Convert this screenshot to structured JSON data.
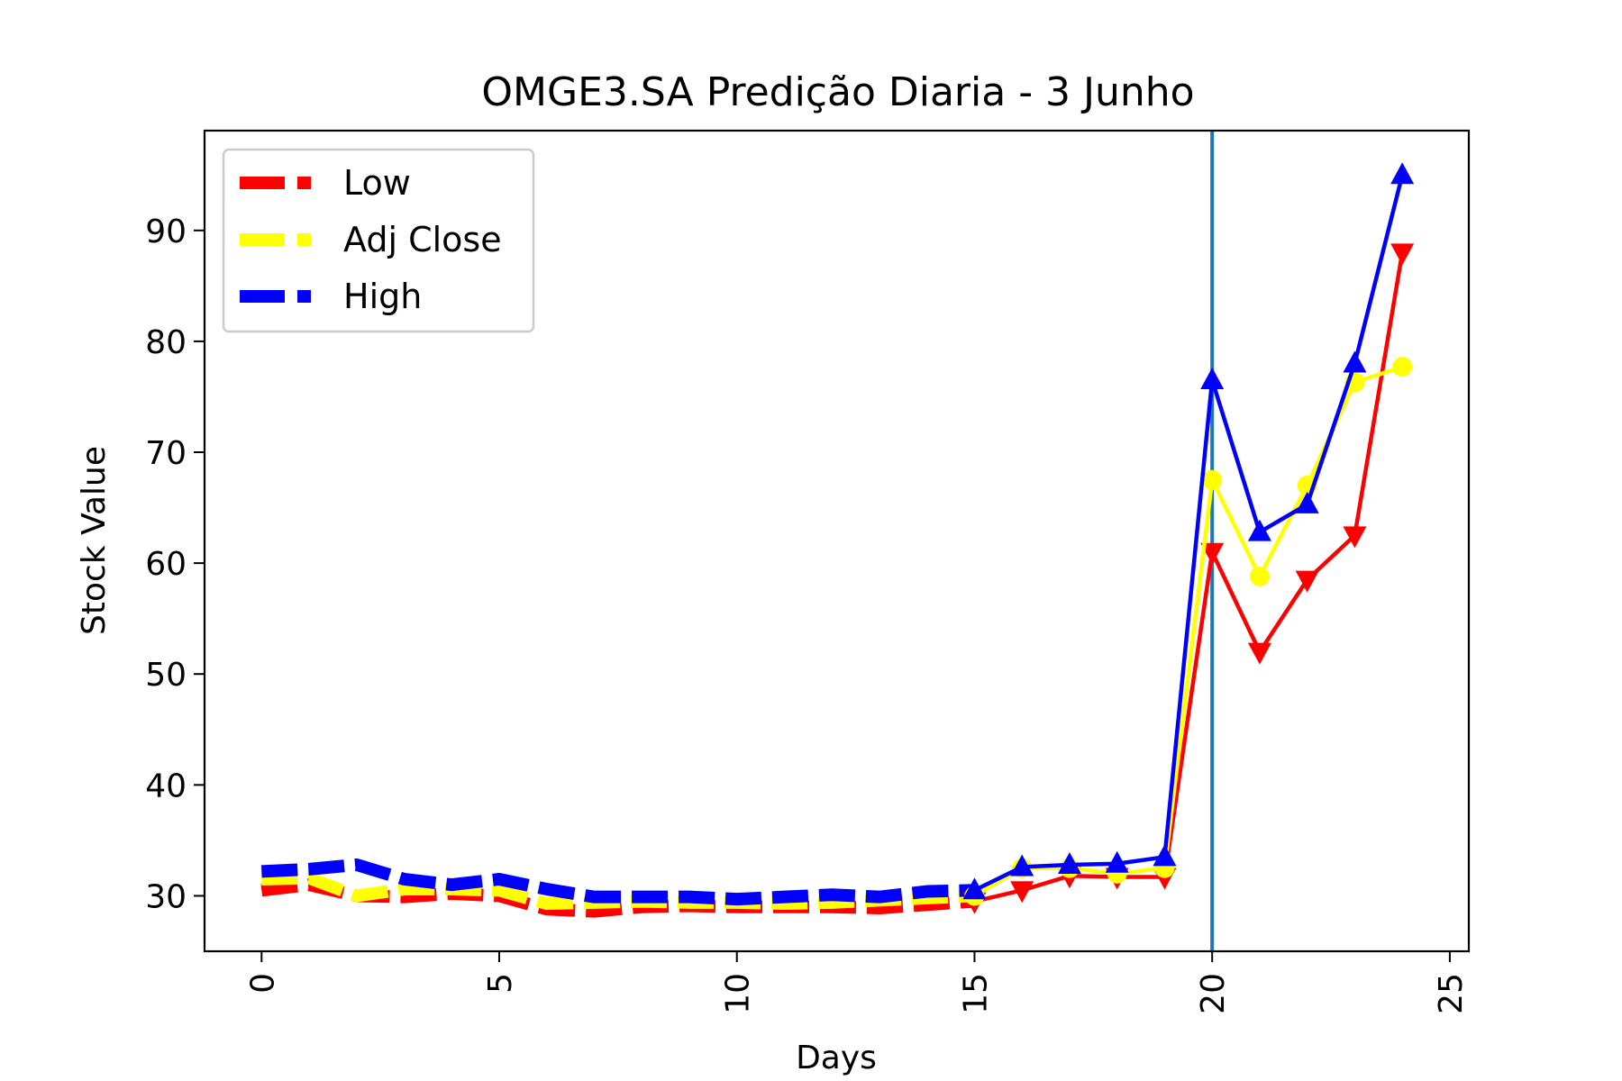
{
  "chart_data": {
    "type": "line",
    "title": "OMGE3.SA Predição Diaria - 3 Junho",
    "xlabel": "Days",
    "ylabel": "Stock Value",
    "xlim": [
      -1.2,
      25.4
    ],
    "ylim": [
      25,
      99
    ],
    "xticks": [
      0,
      5,
      10,
      15,
      20,
      25
    ],
    "yticks": [
      30,
      40,
      50,
      60,
      70,
      80,
      90
    ],
    "grid": false,
    "legend_position": "top-left",
    "vline_x": 20,
    "vline_color": "#1f77b4",
    "series": [
      {
        "name": "Low",
        "color": "#ff0000",
        "history_x": [
          0,
          1,
          2,
          3,
          4,
          5,
          6,
          7,
          8,
          9,
          10,
          11,
          12,
          13,
          14,
          15
        ],
        "history_y": [
          30.5,
          31.0,
          30.0,
          29.9,
          30.2,
          30.0,
          28.8,
          28.6,
          29.0,
          29.1,
          29.0,
          29.0,
          29.0,
          28.9,
          29.2,
          29.5
        ],
        "forecast_x": [
          15,
          16,
          17,
          18,
          19,
          20,
          21,
          22,
          23,
          24
        ],
        "forecast_y": [
          29.5,
          30.5,
          31.8,
          31.7,
          31.7,
          61.0,
          52.0,
          58.5,
          62.5,
          88.0
        ],
        "marker": "triangle-down"
      },
      {
        "name": "Adj Close",
        "color": "#ffff00",
        "history_x": [
          0,
          1,
          2,
          3,
          4,
          5,
          6,
          7,
          8,
          9,
          10,
          11,
          12,
          13,
          14,
          15
        ],
        "history_y": [
          31.5,
          31.6,
          30.0,
          30.6,
          30.6,
          30.5,
          29.3,
          29.4,
          29.5,
          29.4,
          29.4,
          29.3,
          29.4,
          29.6,
          29.8,
          30.0
        ],
        "forecast_x": [
          15,
          16,
          17,
          18,
          19,
          20,
          21,
          22,
          23,
          24
        ],
        "forecast_y": [
          30.0,
          32.5,
          32.5,
          32.0,
          32.5,
          67.5,
          58.8,
          67.0,
          76.3,
          77.7
        ],
        "marker": "circle"
      },
      {
        "name": "High",
        "color": "#0000ff",
        "history_x": [
          0,
          1,
          2,
          3,
          4,
          5,
          6,
          7,
          8,
          9,
          10,
          11,
          12,
          13,
          14,
          15
        ],
        "history_y": [
          32.2,
          32.4,
          32.8,
          31.5,
          31.0,
          31.5,
          30.6,
          29.9,
          29.9,
          29.9,
          29.7,
          29.9,
          30.1,
          29.9,
          30.4,
          30.5
        ],
        "forecast_x": [
          15,
          16,
          17,
          18,
          19,
          20,
          21,
          22,
          23,
          24
        ],
        "forecast_y": [
          30.5,
          32.6,
          32.8,
          32.9,
          33.5,
          76.5,
          62.8,
          65.3,
          78.0,
          95.0
        ],
        "marker": "triangle-up"
      }
    ]
  }
}
